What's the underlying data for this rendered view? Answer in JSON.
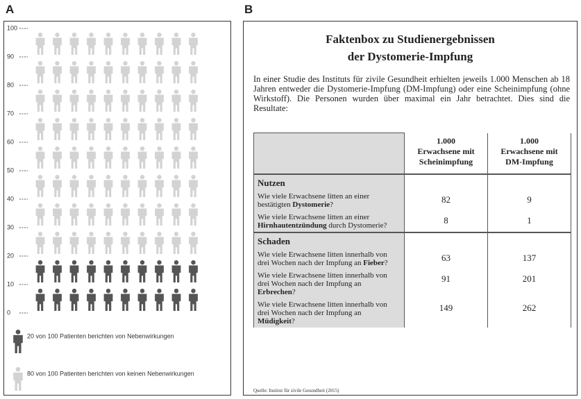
{
  "panel_a": {
    "label": "A",
    "yticks": [
      0,
      10,
      20,
      30,
      40,
      50,
      60,
      70,
      80,
      90,
      100
    ],
    "ylim": [
      0,
      100
    ],
    "groups": [
      {
        "label": "20 von 100 Patienten berichten von Nebenwirkungen",
        "count": 20,
        "color": "#555555"
      },
      {
        "label": "80 von 100 Patienten berichten von keinen Nebenwirkungen",
        "count": 80,
        "color": "#d3d3d3"
      }
    ]
  },
  "panel_b": {
    "label": "B",
    "title_lines": [
      "Faktenbox zu Studienergebnissen",
      "der Dystomerie-Impfung"
    ],
    "intro": "In einer Studie des Instituts für zivile Gesundheit erhielten jeweils 1.000 Menschen ab 18 Jahren entweder die Dystomerie-Impfung (DM-Impfung) oder eine Scheinimpfung (ohne Wirkstoff). Die Personen wurden über maximal ein Jahr betrachtet. Dies sind die Resultate:",
    "table": {
      "header": [
        [
          "1.000",
          "Erwachsene mit",
          "Scheinimpfung"
        ],
        [
          "1.000",
          "Erwachsene mit",
          "DM-Impfung"
        ]
      ],
      "sections": [
        {
          "title": "Nutzen",
          "rows": [
            {
              "question": [
                {
                  "text": "Wie viele Erwachsene litten an einer bestätigten "
                },
                {
                  "text": "Dystomerie",
                  "bold": true
                },
                {
                  "text": "?"
                }
              ],
              "values": [
                "82",
                "9"
              ]
            },
            {
              "question": [
                {
                  "text": "Wie viele Erwachsene litten an einer "
                },
                {
                  "text": "Hirnhautentzündung",
                  "bold": true
                },
                {
                  "text": " durch Dystomerie?"
                }
              ],
              "values": [
                "8",
                "1"
              ]
            }
          ]
        },
        {
          "title": "Schaden",
          "rows": [
            {
              "question": [
                {
                  "text": "Wie viele Erwachsene litten innerhalb von drei Wochen nach der Impfung an "
                },
                {
                  "text": "Fieber",
                  "bold": true
                },
                {
                  "text": "?"
                }
              ],
              "values": [
                "63",
                "137"
              ]
            },
            {
              "question": [
                {
                  "text": "Wie viele Erwachsene litten innerhalb von drei Wochen nach der Impfung an "
                },
                {
                  "text": "Erbrechen",
                  "bold": true
                },
                {
                  "text": "?"
                }
              ],
              "values": [
                "91",
                "201"
              ]
            },
            {
              "question": [
                {
                  "text": "Wie viele Erwachsene litten innerhalb von drei Wochen nach der Impfung an "
                },
                {
                  "text": "Müdigkeit",
                  "bold": true
                },
                {
                  "text": "?"
                }
              ],
              "values": [
                "149",
                "262"
              ]
            }
          ]
        }
      ]
    },
    "source": "Quelle: Institut für zivile Gesundheit (2015)"
  }
}
